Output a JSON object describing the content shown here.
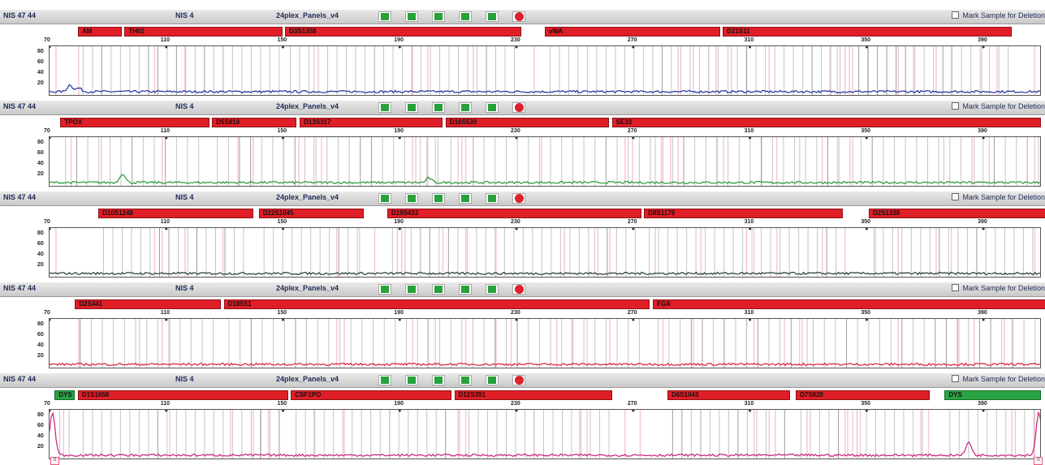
{
  "panels": [
    {
      "sample": "NIS 47 44",
      "lane": "NIS 4",
      "panel": "24plex_Panels_v4",
      "mark_label": "Mark Sample for Deletion",
      "trace_color": "#1d2f9e",
      "bins": [
        {
          "label": "AM",
          "start": 80,
          "end": 95,
          "color": "#e01e27"
        },
        {
          "label": "TH01",
          "start": 96,
          "end": 150,
          "color": "#e01e27"
        },
        {
          "label": "D3S1358",
          "start": 151,
          "end": 232,
          "color": "#e01e27"
        },
        {
          "label": "vWA",
          "start": 240,
          "end": 300,
          "color": "#e01e27"
        },
        {
          "label": "D21S11",
          "start": 301,
          "end": 400,
          "color": "#e01e27"
        }
      ],
      "peaks": [
        {
          "x": 77,
          "h": 0.15
        },
        {
          "x": 80,
          "h": 0.08
        }
      ]
    },
    {
      "sample": "NIS 47 44",
      "lane": "NIS 4",
      "panel": "24plex_Panels_v4",
      "mark_label": "Mark Sample for Deletion",
      "trace_color": "#219a35",
      "bins": [
        {
          "label": "TPOX",
          "start": 74,
          "end": 125,
          "color": "#e01e27"
        },
        {
          "label": "D5S818",
          "start": 126,
          "end": 155,
          "color": "#e01e27"
        },
        {
          "label": "D13S317",
          "start": 156,
          "end": 205,
          "color": "#e01e27"
        },
        {
          "label": "D16S539",
          "start": 206,
          "end": 262,
          "color": "#e01e27"
        },
        {
          "label": "SE33",
          "start": 263,
          "end": 410,
          "color": "#e01e27"
        }
      ],
      "peaks": [
        {
          "x": 95,
          "h": 0.2
        },
        {
          "x": 200,
          "h": 0.1
        }
      ]
    },
    {
      "sample": "NIS 47 44",
      "lane": "NIS 4",
      "panel": "24plex_Panels_v4",
      "mark_label": "Mark Sample for Deletion",
      "trace_color": "#1e3a2c",
      "bins": [
        {
          "label": "D10S1248",
          "start": 87,
          "end": 140,
          "color": "#e01e27"
        },
        {
          "label": "D22S1045",
          "start": 142,
          "end": 178,
          "color": "#e01e27"
        },
        {
          "label": "D19S433",
          "start": 186,
          "end": 273,
          "color": "#e01e27"
        },
        {
          "label": "D8S1179",
          "start": 274,
          "end": 342,
          "color": "#e01e27"
        },
        {
          "label": "D2S1338",
          "start": 351,
          "end": 412,
          "color": "#e01e27"
        }
      ],
      "peaks": []
    },
    {
      "sample": "NIS 47 44",
      "lane": "NIS 4",
      "panel": "24plex_Panels_v4",
      "mark_label": "Mark Sample for Deletion",
      "trace_color": "#d81b3a",
      "bins": [
        {
          "label": "D2S441",
          "start": 79,
          "end": 129,
          "color": "#e01e27"
        },
        {
          "label": "D18S51",
          "start": 130,
          "end": 276,
          "color": "#e01e27"
        },
        {
          "label": "FGA",
          "start": 277,
          "end": 412,
          "color": "#e01e27"
        }
      ],
      "peaks": []
    },
    {
      "sample": "NIS 47 44",
      "lane": "NIS 4",
      "panel": "24plex_Panels_v4",
      "mark_label": "Mark Sample for Deletion",
      "trace_color": "#c51f7a",
      "bins": [
        {
          "label": "DYS",
          "start": 72,
          "end": 79,
          "color": "#2aa344"
        },
        {
          "label": "D1S1656",
          "start": 80,
          "end": 152,
          "color": "#e01e27"
        },
        {
          "label": "CSF1PO",
          "start": 153,
          "end": 208,
          "color": "#e01e27"
        },
        {
          "label": "D12S391",
          "start": 209,
          "end": 263,
          "color": "#e01e27"
        },
        {
          "label": "D6S1043",
          "start": 282,
          "end": 324,
          "color": "#e01e27"
        },
        {
          "label": "D7S820",
          "start": 326,
          "end": 372,
          "color": "#e01e27"
        },
        {
          "label": "DYS",
          "start": 377,
          "end": 410,
          "color": "#2aa344"
        }
      ],
      "peaks": [
        {
          "x": 71,
          "h": 0.95
        },
        {
          "x": 385,
          "h": 0.3
        },
        {
          "x": 409,
          "h": 0.95
        }
      ],
      "ladder_markers": [
        "0",
        "0"
      ]
    }
  ],
  "scale": {
    "min": 70,
    "max": 410,
    "ticks": [
      70,
      110,
      150,
      190,
      230,
      270,
      310,
      350,
      390,
      430
    ]
  },
  "yticks": [
    "80",
    "60",
    "40",
    "20"
  ],
  "colors": {
    "header_bg": "#d3d3d3",
    "bin_red": "#e01e27",
    "bin_green": "#2aa344",
    "status_green": "#27a13a",
    "status_red": "#e0202a"
  }
}
